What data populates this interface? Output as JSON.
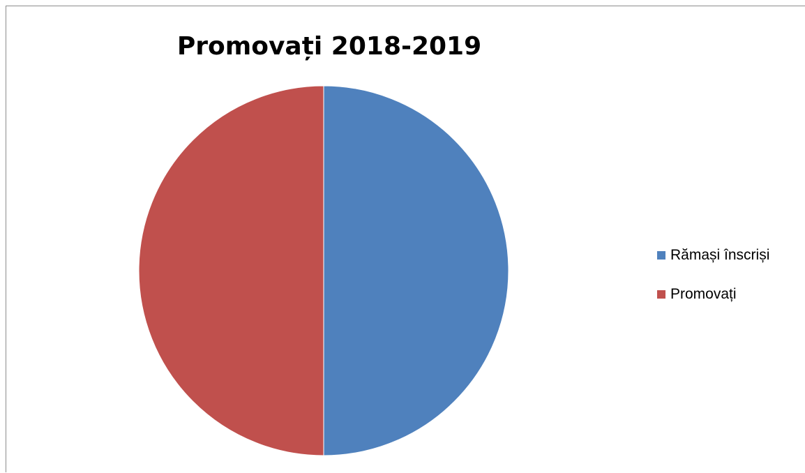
{
  "chart_data": {
    "type": "pie",
    "title": "Promovați 2018-2019",
    "categories": [
      "Rămași înscriși",
      "Promovați"
    ],
    "values": [
      50,
      50
    ],
    "colors": [
      "#4f81bd",
      "#c0504d"
    ],
    "legend_position": "right"
  }
}
